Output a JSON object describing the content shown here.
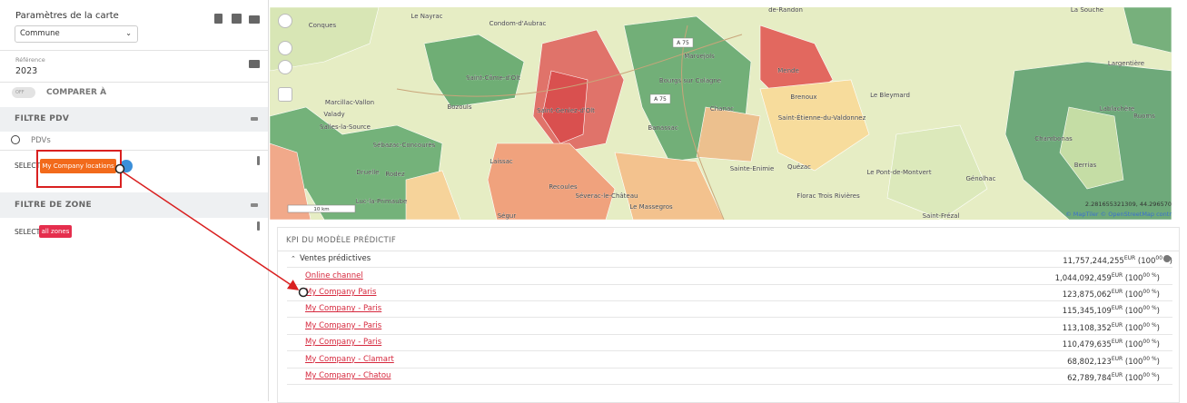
{
  "sidebar": {
    "map_settings": {
      "title": "Paramètres de la carte",
      "select": "Commune"
    },
    "reference": {
      "label": "Référence",
      "value": "2023"
    },
    "compare": {
      "toggle": "OFF",
      "label": "COMPARER À"
    },
    "pdv_filter": {
      "title": "FILTRE PDV",
      "search_placeholder": "PDVs",
      "select_label": "SELECT",
      "chip": "My Company locations"
    },
    "zone_filter": {
      "title": "FILTRE DE ZONE",
      "select_label": "SELECT",
      "chip": "all zones"
    }
  },
  "map": {
    "labels": [
      "Le Nayrac",
      "Condom-d'Aubrac",
      "de-Randon",
      "La Souche",
      "Conques",
      "Marvejols",
      "Saint-Côme-d'Olt",
      "Bourgs sur Colagne",
      "Mende",
      "Le Bleymard",
      "Largentière",
      "Marcillac-Vallon",
      "Valady",
      "Bozouls",
      "Saint-Geniez-d'Olt",
      "Chanac",
      "Brenoux",
      "Saint-Étienne-du-Valdonnez",
      "Lablachère",
      "Ruoms",
      "Salles-la-Source",
      "Banassac",
      "Sébazac-Concourès",
      "Chambonas",
      "Berrias",
      "Laissac",
      "Sainte-Enimie",
      "Quézac",
      "Le Pont-de-Montvert",
      "Génolhac",
      "Druelle",
      "Rodez",
      "Recoules",
      "Séverac-le-Château",
      "Le Massegros",
      "Florac Trois Rivières",
      "Luc-la-Primaube",
      "Saint-Frézal",
      "Ségur"
    ],
    "roads": [
      "A 75",
      "A 75"
    ],
    "scale": "10 km",
    "coordinates": "2.281655321309, 44.296570",
    "attribution": "© MapTiler © OpenStreetMap contr"
  },
  "kpi": {
    "title": "KPI DU MODÈLE PRÉDICTIF",
    "total": {
      "label": "Ventes prédictives",
      "value": "11,757,244,255",
      "unit": "EUR",
      "share": "(100",
      "share_sup": "00 %",
      "share_end": ")"
    },
    "rows": [
      {
        "label": "Online channel",
        "value": "1,044,092,459",
        "unit": "EUR",
        "share": "(100",
        "share_sup": "00 %",
        "share_end": ")"
      },
      {
        "label": "My Company Paris",
        "value": "123,875,062",
        "unit": "EUR",
        "share": "(100",
        "share_sup": "00 %",
        "share_end": ")"
      },
      {
        "label": "My Company - Paris",
        "value": "115,345,109",
        "unit": "EUR",
        "share": "(100",
        "share_sup": "00 %",
        "share_end": ")"
      },
      {
        "label": "My Company - Paris",
        "value": "113,108,352",
        "unit": "EUR",
        "share": "(100",
        "share_sup": "00 %",
        "share_end": ")"
      },
      {
        "label": "My Company - Paris",
        "value": "110,479,635",
        "unit": "EUR",
        "share": "(100",
        "share_sup": "00 %",
        "share_end": ")"
      },
      {
        "label": "My Company - Clamart",
        "value": "68,802,123",
        "unit": "EUR",
        "share": "(100",
        "share_sup": "00 %",
        "share_end": ")"
      },
      {
        "label": "My Company - Chatou",
        "value": "62,789,784",
        "unit": "EUR",
        "share": "(100",
        "share_sup": "00 %",
        "share_end": ")"
      }
    ]
  }
}
